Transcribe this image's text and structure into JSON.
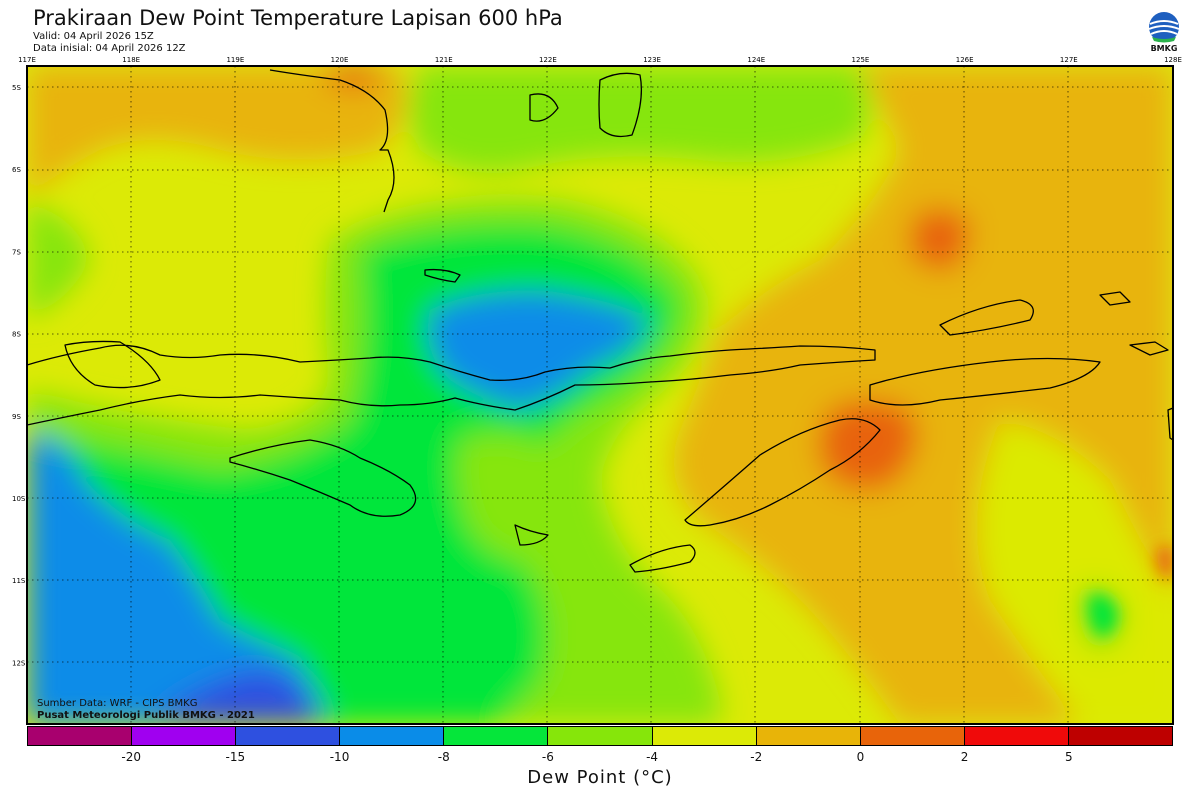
{
  "header": {
    "title": "Prakiraan Dew Point Temperature Lapisan 600 hPa",
    "valid": "Valid: 04 April 2026 15Z",
    "init": "Data inisial: 04 April 2026 12Z"
  },
  "logo": {
    "label": "BMKG",
    "icon": "bmkg-logo"
  },
  "map": {
    "lon_labels": [
      "117E",
      "118E",
      "119E",
      "120E",
      "121E",
      "122E",
      "123E",
      "124E",
      "125E",
      "126E",
      "127E",
      "128E"
    ],
    "lat_labels": [
      "5S",
      "6S",
      "7S",
      "8S",
      "9S",
      "10S",
      "11S",
      "12S"
    ],
    "colors": {
      "frame": "#000000",
      "grid": "#000000",
      "coast": "#000000"
    }
  },
  "credits": {
    "source": "Sumber Data: WRF - CIPS BMKG",
    "org": "Pusat Meteorologi Publik BMKG - 2021"
  },
  "colorbar": {
    "title": "Dew Point (°C)",
    "ticks": [
      "-20",
      "-15",
      "-10",
      "-8",
      "-6",
      "-4",
      "-2",
      "0",
      "2",
      "5"
    ],
    "colors": [
      "#a8006e",
      "#a000f0",
      "#2e50e0",
      "#0a8ce8",
      "#05e63a",
      "#86e60a",
      "#dcea06",
      "#e8b408",
      "#e8640a",
      "#f00a0a",
      "#be0000"
    ]
  }
}
